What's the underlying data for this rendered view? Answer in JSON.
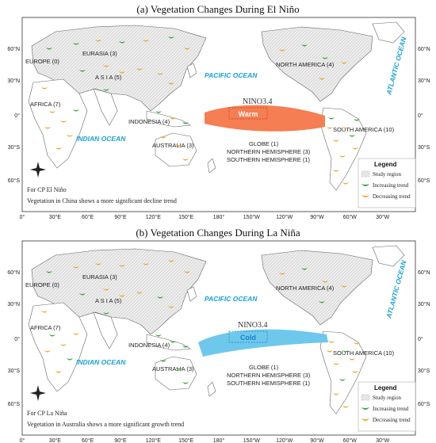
{
  "map_a": {
    "title": "(a) Vegetation Changes During El Niño",
    "enso_box": {
      "name": "NINO3.4",
      "label": "Warm",
      "color": "#f57e52",
      "label_color": "#ffffff"
    },
    "region_labels": {
      "europe": "EUROPE (0)",
      "eurasia": "EURASIA (3)",
      "asia": "A S I A (5)",
      "africa": "AFRICA (7)",
      "indonesia": "INDONESIA (4)",
      "australia": "AUSTRALIA (3)",
      "north_america": "NORTH AMERICA (4)",
      "south_america": "SOUTH AMERICA (10)",
      "globe": "GLOBE (1)",
      "north_hemisphere": "NORTHERN HEMISPHERE (3)",
      "south_hemisphere": "SOUTHERN HEMISPHERE (1)"
    },
    "oceans": {
      "pacific": "PACIFIC OCEAN",
      "indian": "INDIAN OCEAN",
      "atlantic": "ATLANTIC OCEAN"
    },
    "notes": [
      "For CP El Niño",
      "Vegetation in China shows a more significant decline trend"
    ]
  },
  "map_b": {
    "title": "(b) Vegetation Changes During La Niña",
    "enso_box": {
      "name": "NINO3.4",
      "label": "Cold",
      "color": "#6ec8ec",
      "label_color": "#1a7fc8"
    },
    "region_labels": {
      "europe": "EUROPE (0)",
      "eurasia": "EURASIA (3)",
      "asia": "A S I A (5)",
      "africa": "AFRICA (7)",
      "indonesia": "INDONESIA (4)",
      "australia": "AUSTRALIA (3)",
      "north_america": "NORTH AMERICA (4)",
      "south_america": "SOUTH AMERICA (10)",
      "globe": "GLOBE (1)",
      "north_hemisphere": "NORTHERN HEMISPHERE (3)",
      "south_hemisphere": "SOUTHERN HEMISPHERE (1)"
    },
    "oceans": {
      "pacific": "PACIFIC OCEAN",
      "indian": "INDIAN OCEAN",
      "atlantic": "ATLANTIC OCEAN"
    },
    "notes": [
      "For CP La Niña",
      "Vegetation in Australia shows a more significant growth trend"
    ]
  },
  "axes": {
    "lon_ticks": [
      "0°",
      "30°E",
      "60°E",
      "90°E",
      "120°E",
      "150°E",
      "180°",
      "150°W",
      "120°W",
      "90°W",
      "60°W",
      "30°W"
    ],
    "lat_ticks": [
      "60°N",
      "30°N",
      "0°",
      "30°S",
      "60°S"
    ]
  },
  "legend": {
    "title": "Legend",
    "items": [
      "Study region",
      "Increasing trend",
      "Decreasing trend"
    ]
  },
  "colors": {
    "land": "#ffffff",
    "border": "#555555",
    "study_region": "#d9d9d9",
    "increasing": "#3aa83a",
    "decreasing": "#f0a830",
    "ocean_label": "#1aa0d8"
  },
  "compass": {
    "n": "N",
    "s": "S",
    "e": "E",
    "w": "W"
  }
}
